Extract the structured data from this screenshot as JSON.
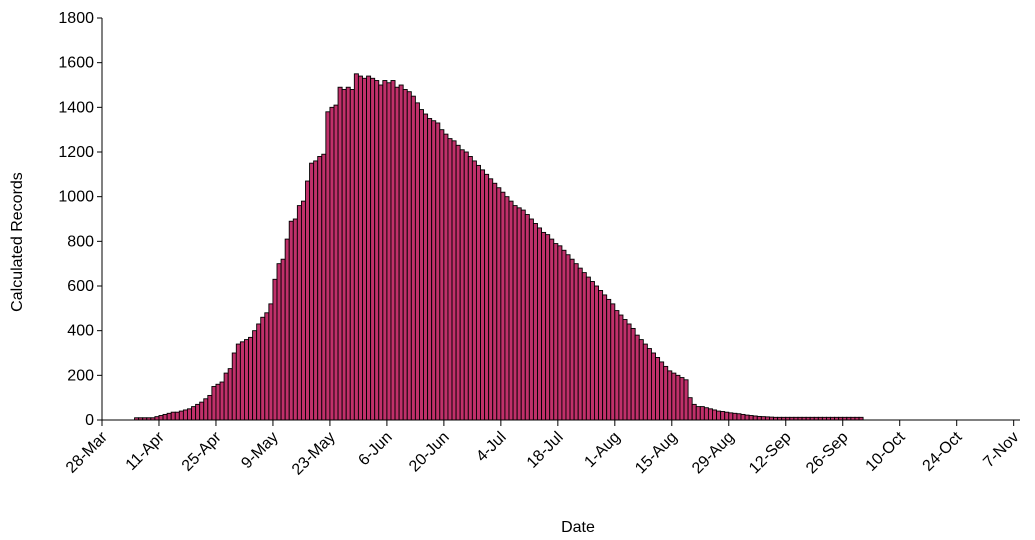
{
  "chart_data": {
    "type": "bar",
    "title": "",
    "xlabel": "Date",
    "ylabel": "Calculated Records",
    "ylim": [
      0,
      1800
    ],
    "y_ticks": [
      0,
      200,
      400,
      600,
      800,
      1000,
      1200,
      1400,
      1600,
      1800
    ],
    "x_axis_type": "date",
    "x_range": [
      "28-Mar",
      "21-Nov"
    ],
    "x_tick_labels": [
      "28-Mar",
      "11-Apr",
      "25-Apr",
      "9-May",
      "23-May",
      "6-Jun",
      "20-Jun",
      "4-Jul",
      "18-Jul",
      "1-Aug",
      "15-Aug",
      "29-Aug",
      "12-Sep",
      "26-Sep",
      "10-Oct",
      "24-Oct",
      "7-Nov"
    ],
    "grid": false,
    "legend": "none",
    "bar_colors": {
      "fill": "#c0306a",
      "edge": "#000000"
    },
    "start_date": "5-Apr",
    "series": [
      {
        "values": [
          10,
          10,
          10,
          10,
          10,
          15,
          20,
          25,
          30,
          35,
          35,
          40,
          45,
          50,
          60,
          70,
          80,
          95,
          110,
          150,
          160,
          170,
          210,
          230,
          300,
          340,
          350,
          360,
          370,
          400,
          430,
          460,
          480,
          520,
          630,
          700,
          720,
          810,
          890,
          900,
          960,
          980,
          1070,
          1150,
          1160,
          1180,
          1190,
          1380,
          1400,
          1410,
          1490,
          1480,
          1490,
          1480,
          1550,
          1540,
          1530,
          1540,
          1530,
          1520,
          1500,
          1520,
          1510,
          1520,
          1490,
          1500,
          1480,
          1470,
          1450,
          1420,
          1390,
          1370,
          1350,
          1340,
          1330,
          1300,
          1280,
          1260,
          1250,
          1230,
          1210,
          1200,
          1180,
          1160,
          1140,
          1120,
          1100,
          1080,
          1060,
          1040,
          1020,
          1000,
          980,
          960,
          950,
          940,
          920,
          900,
          880,
          860,
          840,
          830,
          810,
          790,
          780,
          760,
          740,
          720,
          700,
          680,
          660,
          640,
          620,
          600,
          580,
          560,
          540,
          520,
          490,
          470,
          450,
          430,
          410,
          380,
          360,
          340,
          320,
          300,
          280,
          260,
          240,
          220,
          210,
          200,
          190,
          180,
          100,
          70,
          60,
          60,
          55,
          50,
          45,
          40,
          38,
          35,
          32,
          30,
          28,
          25,
          22,
          20,
          18,
          16,
          15,
          14,
          13,
          12,
          12,
          12,
          12,
          12,
          12,
          12,
          12,
          12,
          12,
          12,
          12,
          12,
          12,
          12,
          12,
          12,
          12,
          12,
          12,
          12,
          12
        ]
      }
    ]
  }
}
